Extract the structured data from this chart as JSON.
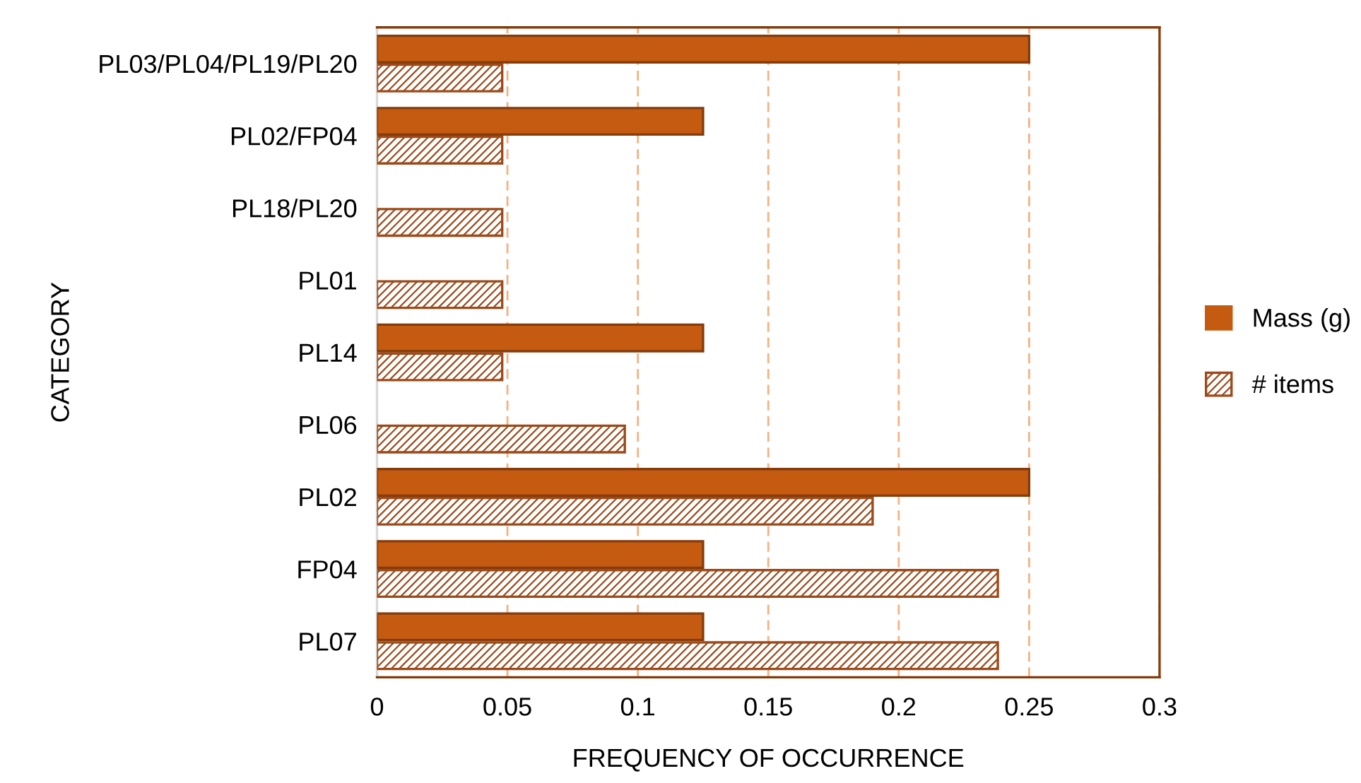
{
  "chart_data": {
    "type": "bar",
    "orientation": "horizontal",
    "xlabel": "FREQUENCY OF OCCURRENCE",
    "ylabel": "CATEGORY",
    "categories": [
      "PL03/PL04/PL19/PL20",
      "PL02/FP04",
      "PL18/PL20",
      "PL01",
      "PL14",
      "PL06",
      "PL02",
      "FP04",
      "PL07"
    ],
    "series": [
      {
        "name": "Mass (g)",
        "color": "#c55a11",
        "values": [
          0.25,
          0.125,
          null,
          null,
          0.125,
          null,
          0.25,
          0.125,
          0.125
        ]
      },
      {
        "name": "# items",
        "color": "#9c4a1a",
        "values": [
          0.048,
          0.048,
          0.048,
          0.048,
          0.048,
          0.095,
          0.19,
          0.238,
          0.238
        ]
      }
    ],
    "xlim": [
      0,
      0.3
    ],
    "xticks": [
      0,
      0.05,
      {
        "value": 0.1,
        "label": "0.1"
      },
      0.15,
      {
        "value": 0.2,
        "label": "0.2"
      },
      0.25,
      {
        "value": 0.3,
        "label": "0.3"
      }
    ],
    "grid": "x",
    "legend": "right"
  }
}
